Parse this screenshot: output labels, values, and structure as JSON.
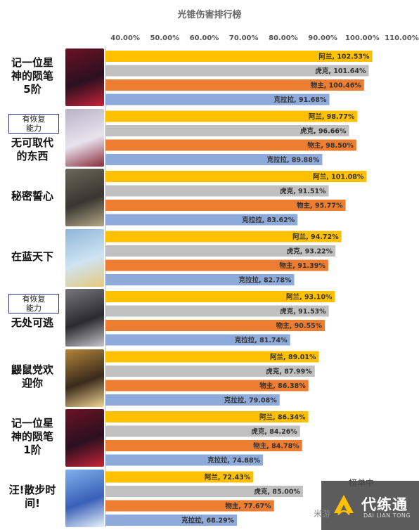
{
  "title": "光锥伤害排行榜",
  "chart_data": {
    "type": "bar",
    "orientation": "horizontal",
    "title": "光锥伤害排行榜",
    "xlim": [
      0.35,
      1.15
    ],
    "ticks": [
      "40.00%",
      "50.00%",
      "60.00%",
      "70.00%",
      "80.00%",
      "90.00%",
      "100.00%",
      "110.00%"
    ],
    "tick_values": [
      0.4,
      0.5,
      0.6,
      0.7,
      0.8,
      0.9,
      1.0,
      1.1
    ],
    "legend": "none",
    "series_colors": {
      "阿兰": "#ffc000",
      "虎克": "#c0c0c0",
      "物主": "#ed7d31",
      "克拉拉": "#8eaadb"
    },
    "categories": [
      {
        "name": "记一位星神的陨笔5阶",
        "label_lines": [
          "记一位星",
          "神的陨笔",
          "5阶"
        ],
        "tag": null,
        "thumb": "cone-red",
        "bars": [
          {
            "series": "阿兰",
            "value": 1.0253,
            "label": "阿兰, 102.53%"
          },
          {
            "series": "虎克",
            "value": 1.0164,
            "label": "虎克, 101.64%"
          },
          {
            "series": "物主",
            "value": 1.0046,
            "label": "物主, 100.46%"
          },
          {
            "series": "克拉拉",
            "value": 0.9168,
            "label": "克拉拉, 91.68%"
          }
        ]
      },
      {
        "name": "无可取代的东西",
        "label_lines": [
          "无可取代",
          "的东西"
        ],
        "tag": [
          "有恢复",
          "能力"
        ],
        "thumb": "cone-white",
        "bars": [
          {
            "series": "阿兰",
            "value": 0.9877,
            "label": "阿兰, 98.77%"
          },
          {
            "series": "虎克",
            "value": 0.9666,
            "label": "虎克, 96.66%"
          },
          {
            "series": "物主",
            "value": 0.985,
            "label": "物主, 98.50%"
          },
          {
            "series": "克拉拉",
            "value": 0.8988,
            "label": "克拉拉, 89.88%"
          }
        ]
      },
      {
        "name": "秘密誓心",
        "label_lines": [
          "秘密誓心"
        ],
        "tag": null,
        "thumb": "cone-dark",
        "bars": [
          {
            "series": "阿兰",
            "value": 1.0108,
            "label": "阿兰, 101.08%"
          },
          {
            "series": "虎克",
            "value": 0.9151,
            "label": "虎克, 91.51%"
          },
          {
            "series": "物主",
            "value": 0.9577,
            "label": "物主, 95.77%"
          },
          {
            "series": "克拉拉",
            "value": 0.8362,
            "label": "克拉拉, 83.62%"
          }
        ]
      },
      {
        "name": "在蓝天下",
        "label_lines": [
          "在蓝天下"
        ],
        "tag": null,
        "thumb": "cone-blue",
        "bars": [
          {
            "series": "阿兰",
            "value": 0.9472,
            "label": "阿兰, 94.72%"
          },
          {
            "series": "虎克",
            "value": 0.9322,
            "label": "虎克, 93.22%"
          },
          {
            "series": "物主",
            "value": 0.9139,
            "label": "物主, 91.39%"
          },
          {
            "series": "克拉拉",
            "value": 0.8278,
            "label": "克拉拉, 82.78%"
          }
        ]
      },
      {
        "name": "无处可逃",
        "label_lines": [
          "无处可逃"
        ],
        "tag": [
          "有恢复",
          "能力"
        ],
        "thumb": "cone-grey",
        "bars": [
          {
            "series": "阿兰",
            "value": 0.931,
            "label": "阿兰, 93.10%"
          },
          {
            "series": "虎克",
            "value": 0.9153,
            "label": "虎克, 91.53%"
          },
          {
            "series": "物主",
            "value": 0.9055,
            "label": "物主, 90.55%"
          },
          {
            "series": "克拉拉",
            "value": 0.8174,
            "label": "克拉拉, 81.74%"
          }
        ]
      },
      {
        "name": "鼹鼠党欢迎你",
        "label_lines": [
          "鼹鼠党欢",
          "迎你"
        ],
        "tag": null,
        "thumb": "cone-gold",
        "bars": [
          {
            "series": "阿兰",
            "value": 0.8901,
            "label": "阿兰, 89.01%"
          },
          {
            "series": "虎克",
            "value": 0.8799,
            "label": "虎克, 87.99%"
          },
          {
            "series": "物主",
            "value": 0.8638,
            "label": "物主, 86.38%"
          },
          {
            "series": "克拉拉",
            "value": 0.7908,
            "label": "克拉拉, 79.08%"
          }
        ]
      },
      {
        "name": "记一位星神的陨笔1阶",
        "label_lines": [
          "记一位星",
          "神的陨笔",
          "1阶"
        ],
        "tag": null,
        "thumb": "cone-red",
        "bars": [
          {
            "series": "阿兰",
            "value": 0.8634,
            "label": "阿兰, 86.34%"
          },
          {
            "series": "虎克",
            "value": 0.8426,
            "label": "虎克, 84.26%"
          },
          {
            "series": "物主",
            "value": 0.8478,
            "label": "物主, 84.78%"
          },
          {
            "series": "克拉拉",
            "value": 0.7488,
            "label": "克拉拉, 74.88%"
          }
        ]
      },
      {
        "name": "汪!散步时间!",
        "label_lines": [
          "汪!散步时",
          "间!"
        ],
        "tag": null,
        "thumb": "cone-sky",
        "bars": [
          {
            "series": "阿兰",
            "value": 0.7243,
            "label": "阿兰, 72.43%"
          },
          {
            "series": "虎克",
            "value": 0.85,
            "label": "虎克, 85.00%"
          },
          {
            "series": "物主",
            "value": 0.7767,
            "label": "物主, 77.67%"
          },
          {
            "series": "克拉拉",
            "value": 0.6829,
            "label": "克拉拉, 68.29%"
          }
        ]
      }
    ]
  },
  "watermark": {
    "title": "代练通",
    "subtitle": "DAI LIAN TONG",
    "faint_top": "榜单中",
    "faint_left": "米游"
  }
}
